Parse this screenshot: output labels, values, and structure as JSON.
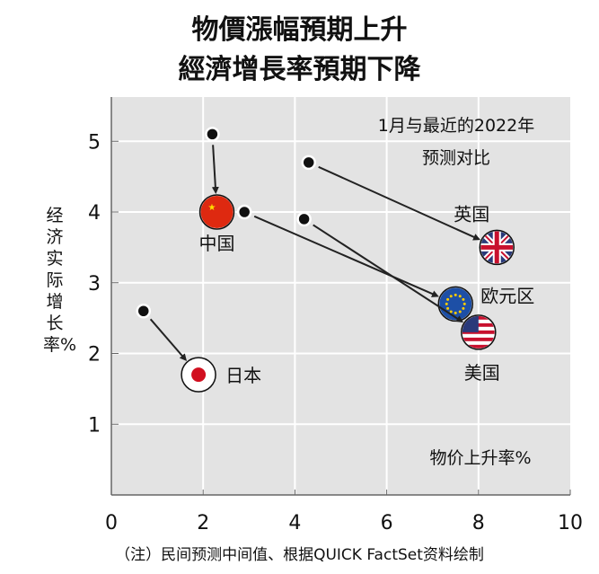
{
  "chart_data": {
    "type": "scatter",
    "title": [
      "物價漲幅預期上升",
      "經濟增長率預期下降"
    ],
    "xlabel": "物价上升率%",
    "ylabel": "经济实际增长率%",
    "xlim": [
      0,
      10
    ],
    "ylim": [
      0,
      5.5
    ],
    "xticks": [
      "0",
      "2",
      "4",
      "6",
      "8",
      "10"
    ],
    "yticks": [
      "1",
      "2",
      "3",
      "4",
      "5"
    ],
    "grid": true,
    "legend_note": "1月与最近的2022年预测对比",
    "legend_lines": [
      "1月与最近的2022年",
      "预测对比"
    ],
    "series": [
      {
        "name": "中国",
        "from": [
          2.2,
          5.1
        ],
        "to": [
          2.3,
          4.0
        ],
        "flag": "cn"
      },
      {
        "name": "日本",
        "from": [
          0.7,
          2.6
        ],
        "to": [
          1.9,
          1.7
        ],
        "flag": "jp"
      },
      {
        "name": "英国",
        "from": [
          4.3,
          4.7
        ],
        "to": [
          8.4,
          3.5
        ],
        "flag": "uk"
      },
      {
        "name": "欧元区",
        "from": [
          2.9,
          4.0
        ],
        "to": [
          7.5,
          2.7
        ],
        "flag": "eu"
      },
      {
        "name": "美国",
        "from": [
          4.2,
          3.9
        ],
        "to": [
          8.0,
          2.3
        ],
        "flag": "us"
      }
    ],
    "note": "（注）民间预测中间值、根据QUICK FactSet资料绘制"
  }
}
